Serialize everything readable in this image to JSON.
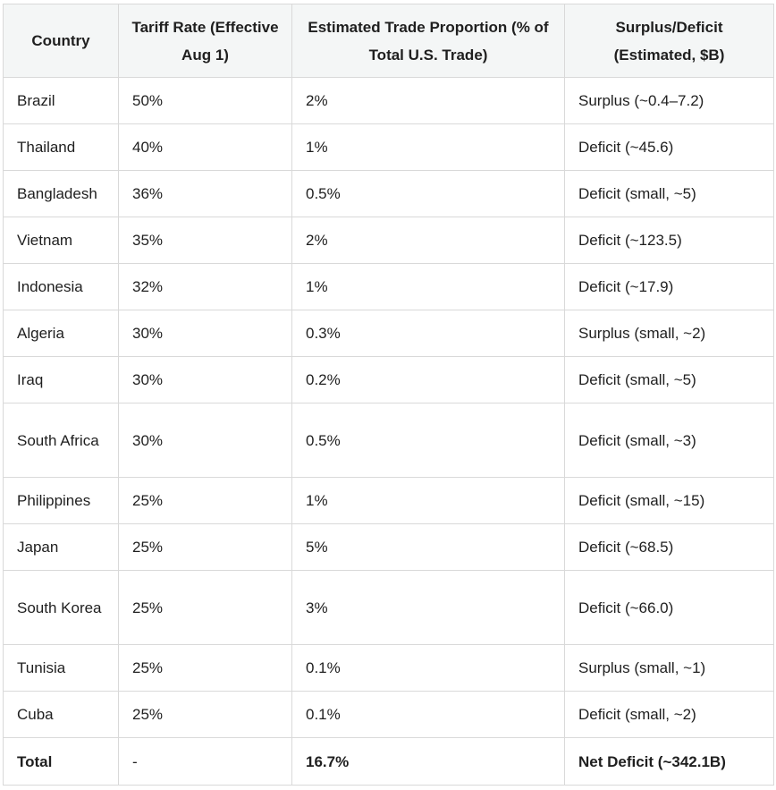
{
  "headers": [
    "Country",
    "Tariff Rate (Effective Aug 1)",
    "Estimated Trade Proportion (% of Total U.S. Trade)",
    "Surplus/Deficit (Estimated, $B)"
  ],
  "rows": [
    {
      "country": "Brazil",
      "tariff": "50%",
      "proportion": "2%",
      "balance": "Surplus (~0.4–7.2)"
    },
    {
      "country": "Thailand",
      "tariff": "40%",
      "proportion": "1%",
      "balance": "Deficit (~45.6)"
    },
    {
      "country": "Bangladesh",
      "tariff": "36%",
      "proportion": "0.5%",
      "balance": "Deficit (small, ~5)"
    },
    {
      "country": "Vietnam",
      "tariff": "35%",
      "proportion": "2%",
      "balance": "Deficit (~123.5)"
    },
    {
      "country": "Indonesia",
      "tariff": "32%",
      "proportion": "1%",
      "balance": "Deficit (~17.9)"
    },
    {
      "country": "Algeria",
      "tariff": "30%",
      "proportion": "0.3%",
      "balance": "Surplus (small, ~2)"
    },
    {
      "country": "Iraq",
      "tariff": "30%",
      "proportion": "0.2%",
      "balance": "Deficit (small, ~5)"
    },
    {
      "country": "South Africa",
      "tariff": "30%",
      "proportion": "0.5%",
      "balance": "Deficit (small, ~3)"
    },
    {
      "country": "Philippines",
      "tariff": "25%",
      "proportion": "1%",
      "balance": "Deficit (small, ~15)"
    },
    {
      "country": "Japan",
      "tariff": "25%",
      "proportion": "5%",
      "balance": "Deficit (~68.5)"
    },
    {
      "country": "South Korea",
      "tariff": "25%",
      "proportion": "3%",
      "balance": "Deficit (~66.0)"
    },
    {
      "country": "Tunisia",
      "tariff": "25%",
      "proportion": "0.1%",
      "balance": "Surplus (small, ~1)"
    },
    {
      "country": "Cuba",
      "tariff": "25%",
      "proportion": "0.1%",
      "balance": "Deficit (small, ~2)"
    }
  ],
  "total": {
    "country": "Total",
    "tariff": "-",
    "proportion": "16.7%",
    "balance": "Net Deficit (~342.1B)"
  }
}
